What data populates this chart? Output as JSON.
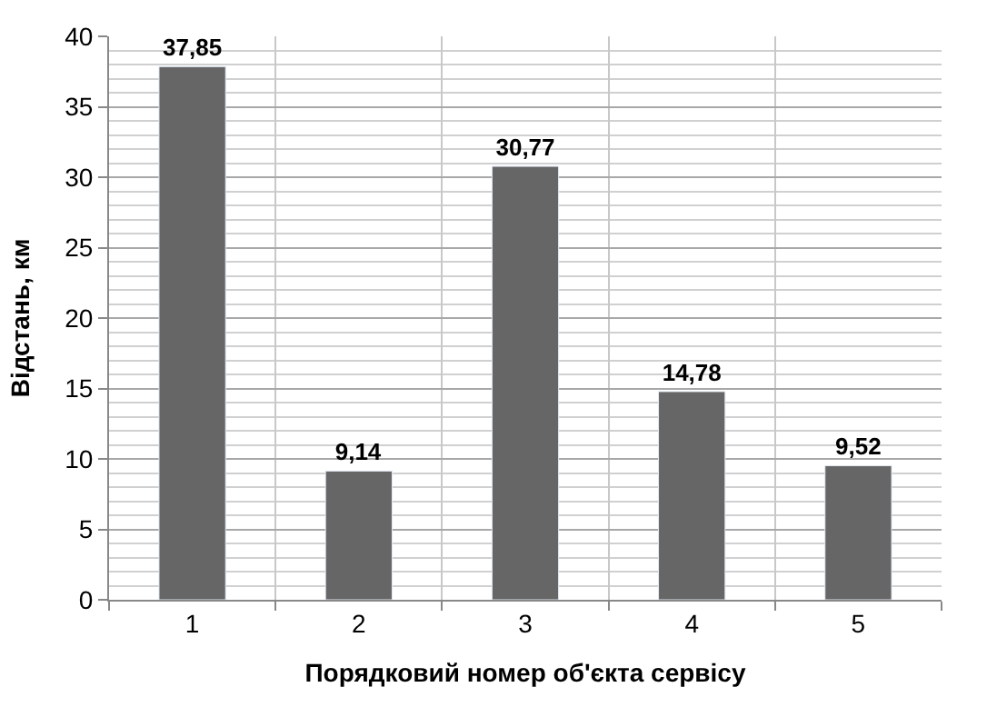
{
  "chart_data": {
    "type": "bar",
    "xlabel": "Порядковий номер об'єкта сервісу",
    "ylabel": "Відстань, км",
    "categories": [
      "1",
      "2",
      "3",
      "4",
      "5"
    ],
    "values": [
      37.85,
      9.14,
      30.77,
      14.78,
      9.52
    ],
    "value_labels": [
      "37,85",
      "9,14",
      "30,77",
      "14,78",
      "9,52"
    ],
    "color": "#666666",
    "ylim": [
      0,
      40
    ],
    "yticks": [
      0,
      5,
      10,
      15,
      20,
      25,
      30,
      35,
      40
    ],
    "grid": true
  }
}
